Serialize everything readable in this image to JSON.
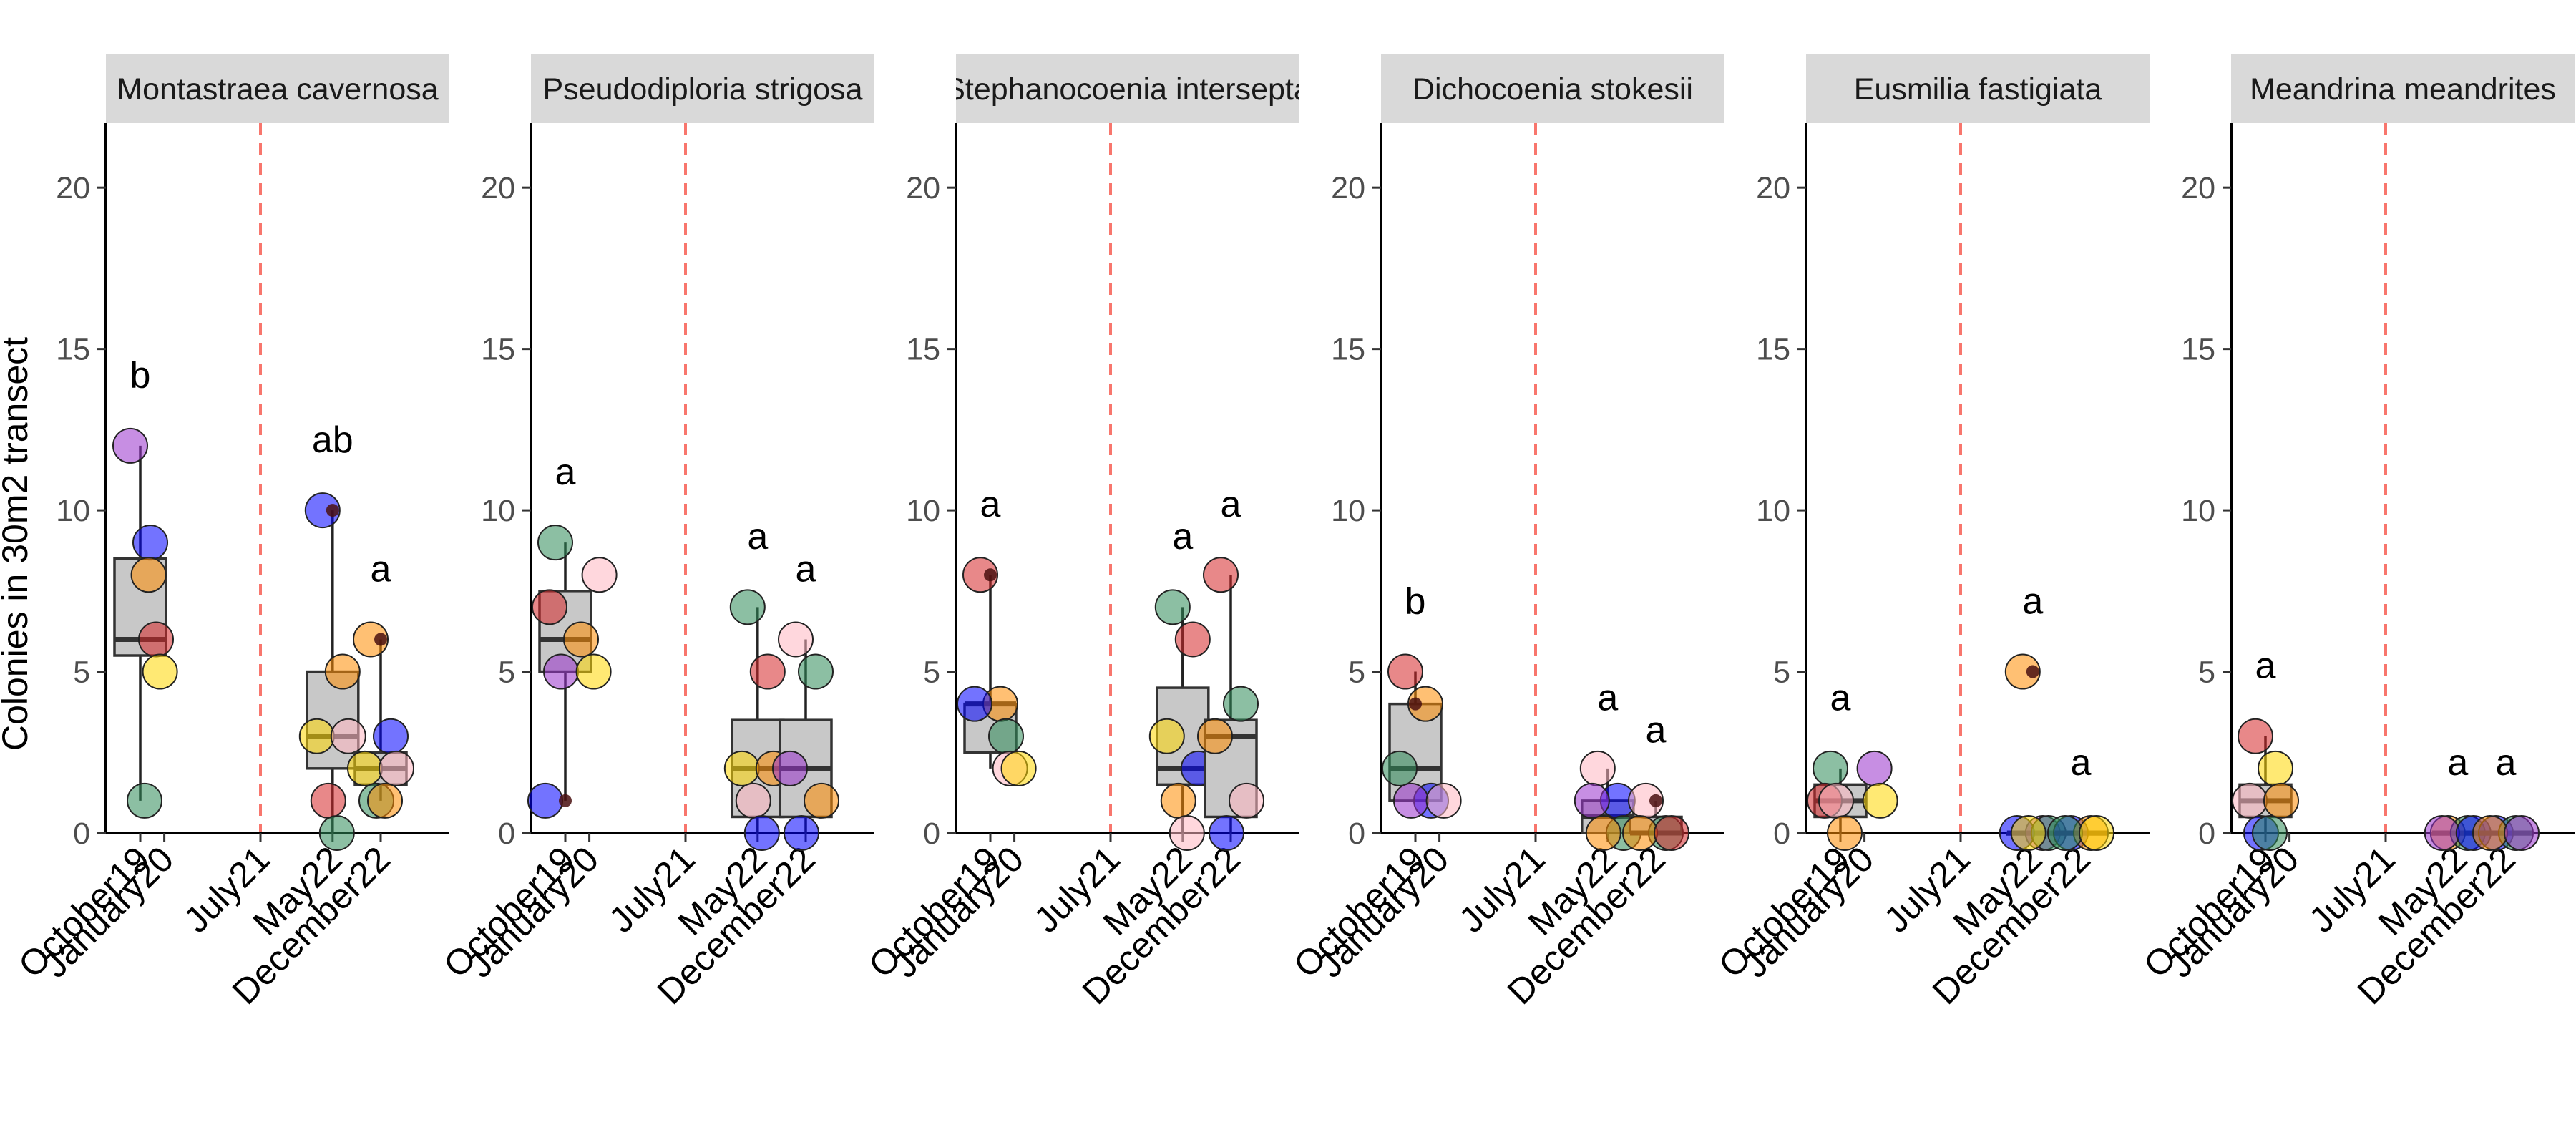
{
  "chart_data": {
    "type": "box",
    "ylabel": "Colonies in 30m2 transect",
    "ylim": [
      0,
      22
    ],
    "yticks": [
      0,
      5,
      10,
      15,
      20
    ],
    "x_categories": [
      "October19",
      "January20",
      "July21",
      "May22",
      "December22"
    ],
    "reference_line": {
      "at": "July21",
      "style": "dashed",
      "color": "#f8766d"
    },
    "point_colors": [
      "#2e8b57",
      "#0000ff",
      "#ffd700",
      "#ff8c00",
      "#9932cc",
      "#ffb6c1",
      "#d62728",
      "#c0c0c0"
    ],
    "box_fill": "#c8c8c8",
    "grid": false,
    "panels": [
      {
        "species": "Montastraea cavernosa",
        "groups": [
          {
            "time": "October19",
            "box": {
              "q1": 5.5,
              "median": 6,
              "q3": 8.5,
              "wlo": 1,
              "whi": 12
            },
            "letter": "b",
            "letter_y": 13.8,
            "points": [
              {
                "x": "October19",
                "y": 12,
                "c": 4
              },
              {
                "x": "October19",
                "y": 9,
                "c": 1
              },
              {
                "x": "January20",
                "y": 8,
                "c": 3
              },
              {
                "x": "October19",
                "y": 6,
                "c": 6
              },
              {
                "x": "January20",
                "y": 5,
                "c": 2
              },
              {
                "x": "October19",
                "y": 1,
                "c": 0
              }
            ],
            "mean": null
          },
          {
            "time": "May22",
            "box": {
              "q1": 2,
              "median": 3,
              "q3": 5,
              "wlo": 0,
              "whi": 10
            },
            "letter": "ab",
            "letter_y": 11.8,
            "points": [
              {
                "x": "May22",
                "y": 10,
                "c": 1
              },
              {
                "x": "May22",
                "y": 5,
                "c": 3
              },
              {
                "x": "May22",
                "y": 3,
                "c": 2
              },
              {
                "x": "May22",
                "y": 3,
                "c": 5
              },
              {
                "x": "May22",
                "y": 1,
                "c": 6
              },
              {
                "x": "May22",
                "y": 0,
                "c": 0
              }
            ],
            "mean": 10
          },
          {
            "time": "December22",
            "box": {
              "q1": 1.5,
              "median": 2,
              "q3": 2.5,
              "wlo": 1,
              "whi": 6
            },
            "letter": "a",
            "letter_y": 7.8,
            "points": [
              {
                "x": "December22",
                "y": 6,
                "c": 3
              },
              {
                "x": "December22",
                "y": 3,
                "c": 1
              },
              {
                "x": "December22",
                "y": 2,
                "c": 2
              },
              {
                "x": "December22",
                "y": 2,
                "c": 5
              },
              {
                "x": "December22",
                "y": 1,
                "c": 0
              },
              {
                "x": "December22",
                "y": 1,
                "c": 3
              }
            ],
            "mean": 6
          }
        ]
      },
      {
        "species": "Pseudodiploria strigosa",
        "groups": [
          {
            "time": "October19",
            "box": {
              "q1": 5,
              "median": 6,
              "q3": 7.5,
              "wlo": 1,
              "whi": 9
            },
            "letter": "a",
            "letter_y": 10.8,
            "points": [
              {
                "x": "October19",
                "y": 9,
                "c": 0
              },
              {
                "x": "January20",
                "y": 8,
                "c": 5
              },
              {
                "x": "October19",
                "y": 7,
                "c": 6
              },
              {
                "x": "October19",
                "y": 6,
                "c": 3
              },
              {
                "x": "October19",
                "y": 5,
                "c": 4
              },
              {
                "x": "January20",
                "y": 5,
                "c": 2
              },
              {
                "x": "October19",
                "y": 1,
                "c": 1
              }
            ],
            "mean": 1
          },
          {
            "time": "May22",
            "box": {
              "q1": 0.5,
              "median": 2,
              "q3": 3.5,
              "wlo": 0,
              "whi": 7
            },
            "letter": "a",
            "letter_y": 8.8,
            "points": [
              {
                "x": "May22",
                "y": 7,
                "c": 0
              },
              {
                "x": "May22",
                "y": 5,
                "c": 6
              },
              {
                "x": "May22",
                "y": 2,
                "c": 2
              },
              {
                "x": "May22",
                "y": 2,
                "c": 3
              },
              {
                "x": "May22",
                "y": 1,
                "c": 5
              },
              {
                "x": "May22",
                "y": 0,
                "c": 1
              }
            ],
            "mean": null
          },
          {
            "time": "December22",
            "box": {
              "q1": 0.5,
              "median": 2,
              "q3": 3.5,
              "wlo": 0,
              "whi": 6
            },
            "letter": "a",
            "letter_y": 7.8,
            "points": [
              {
                "x": "December22",
                "y": 6,
                "c": 5
              },
              {
                "x": "December22",
                "y": 5,
                "c": 0
              },
              {
                "x": "December22",
                "y": 2,
                "c": 4
              },
              {
                "x": "December22",
                "y": 1,
                "c": 3
              },
              {
                "x": "December22",
                "y": 0,
                "c": 1
              }
            ],
            "mean": null
          }
        ]
      },
      {
        "species": "Stephanocoenia intersepta",
        "groups": [
          {
            "time": "October19",
            "box": {
              "q1": 2.5,
              "median": 4,
              "q3": 4,
              "wlo": 2,
              "whi": 8
            },
            "letter": "a",
            "letter_y": 9.8,
            "points": [
              {
                "x": "October19",
                "y": 8,
                "c": 6
              },
              {
                "x": "October19",
                "y": 4,
                "c": 3
              },
              {
                "x": "October19",
                "y": 4,
                "c": 1
              },
              {
                "x": "October19",
                "y": 3,
                "c": 0
              },
              {
                "x": "January20",
                "y": 2,
                "c": 5
              },
              {
                "x": "January20",
                "y": 2,
                "c": 2
              }
            ],
            "mean": 8
          },
          {
            "time": "May22",
            "box": {
              "q1": 1.5,
              "median": 2,
              "q3": 4.5,
              "wlo": 0,
              "whi": 7
            },
            "letter": "a",
            "letter_y": 8.8,
            "points": [
              {
                "x": "May22",
                "y": 7,
                "c": 0
              },
              {
                "x": "May22",
                "y": 6,
                "c": 6
              },
              {
                "x": "May22",
                "y": 3,
                "c": 2
              },
              {
                "x": "May22",
                "y": 2,
                "c": 1
              },
              {
                "x": "May22",
                "y": 1,
                "c": 3
              },
              {
                "x": "May22",
                "y": 0,
                "c": 5
              }
            ],
            "mean": null
          },
          {
            "time": "December22",
            "box": {
              "q1": 0.5,
              "median": 3,
              "q3": 3.5,
              "wlo": 0,
              "whi": 8
            },
            "letter": "a",
            "letter_y": 9.8,
            "points": [
              {
                "x": "December22",
                "y": 8,
                "c": 6
              },
              {
                "x": "December22",
                "y": 4,
                "c": 0
              },
              {
                "x": "December22",
                "y": 3,
                "c": 3
              },
              {
                "x": "December22",
                "y": 1,
                "c": 5
              },
              {
                "x": "December22",
                "y": 0,
                "c": 1
              }
            ],
            "mean": null
          }
        ]
      },
      {
        "species": "Dichocoenia stokesii",
        "groups": [
          {
            "time": "October19",
            "box": {
              "q1": 1,
              "median": 2,
              "q3": 4,
              "wlo": 1,
              "whi": 5
            },
            "letter": "b",
            "letter_y": 6.8,
            "points": [
              {
                "x": "October19",
                "y": 5,
                "c": 6
              },
              {
                "x": "October19",
                "y": 4,
                "c": 3
              },
              {
                "x": "October19",
                "y": 2,
                "c": 0
              },
              {
                "x": "October19",
                "y": 1,
                "c": 1
              },
              {
                "x": "October19",
                "y": 1,
                "c": 4
              },
              {
                "x": "January20",
                "y": 1,
                "c": 5
              }
            ],
            "mean": 4
          },
          {
            "time": "May22",
            "box": {
              "q1": 0,
              "median": 0.5,
              "q3": 1,
              "wlo": 0,
              "whi": 2
            },
            "letter": "a",
            "letter_y": 3.8,
            "points": [
              {
                "x": "May22",
                "y": 2,
                "c": 5
              },
              {
                "x": "May22",
                "y": 1,
                "c": 1
              },
              {
                "x": "May22",
                "y": 1,
                "c": 4
              },
              {
                "x": "May22",
                "y": 0,
                "c": 0
              },
              {
                "x": "May22",
                "y": 0,
                "c": 3
              }
            ],
            "mean": null
          },
          {
            "time": "December22",
            "box": {
              "q1": 0,
              "median": 0,
              "q3": 0.5,
              "wlo": 0,
              "whi": 1
            },
            "letter": "a",
            "letter_y": 2.8,
            "points": [
              {
                "x": "December22",
                "y": 1,
                "c": 5
              },
              {
                "x": "December22",
                "y": 0,
                "c": 0
              },
              {
                "x": "December22",
                "y": 0,
                "c": 3
              },
              {
                "x": "December22",
                "y": 0,
                "c": 6
              }
            ],
            "mean": 1
          }
        ]
      },
      {
        "species": "Eusmilia fastigiata",
        "groups": [
          {
            "time": "October19",
            "box": {
              "q1": 0.5,
              "median": 1,
              "q3": 1.5,
              "wlo": 0,
              "whi": 2
            },
            "letter": "a",
            "letter_y": 3.8,
            "points": [
              {
                "x": "October19",
                "y": 2,
                "c": 0
              },
              {
                "x": "January20",
                "y": 2,
                "c": 4
              },
              {
                "x": "October19",
                "y": 1,
                "c": 6
              },
              {
                "x": "January20",
                "y": 1,
                "c": 2
              },
              {
                "x": "October19",
                "y": 1,
                "c": 5
              },
              {
                "x": "October19",
                "y": 0,
                "c": 3
              }
            ],
            "mean": null
          },
          {
            "time": "May22",
            "box": {
              "q1": 0,
              "median": 0,
              "q3": 0,
              "wlo": 0,
              "whi": 0
            },
            "letter": "a",
            "letter_y": 6.8,
            "points": [
              {
                "x": "May22",
                "y": 5,
                "c": 3
              },
              {
                "x": "May22",
                "y": 0,
                "c": 4
              },
              {
                "x": "May22",
                "y": 0,
                "c": 1
              },
              {
                "x": "May22",
                "y": 0,
                "c": 0
              },
              {
                "x": "May22",
                "y": 0,
                "c": 2
              }
            ],
            "mean": 5
          },
          {
            "time": "December22",
            "box": {
              "q1": 0,
              "median": 0,
              "q3": 0,
              "wlo": 0,
              "whi": 0
            },
            "letter": "a",
            "letter_y": 1.8,
            "points": [
              {
                "x": "December22",
                "y": 0,
                "c": 1
              },
              {
                "x": "December22",
                "y": 0,
                "c": 3
              },
              {
                "x": "December22",
                "y": 0,
                "c": 0
              },
              {
                "x": "December22",
                "y": 0,
                "c": 2
              }
            ],
            "mean": null
          }
        ]
      },
      {
        "species": "Meandrina meandrites",
        "groups": [
          {
            "time": "October19",
            "box": {
              "q1": 0.5,
              "median": 1,
              "q3": 1.5,
              "wlo": 0,
              "whi": 3
            },
            "letter": "a",
            "letter_y": 4.8,
            "points": [
              {
                "x": "October19",
                "y": 3,
                "c": 6
              },
              {
                "x": "October19",
                "y": 2,
                "c": 2
              },
              {
                "x": "October19",
                "y": 1,
                "c": 5
              },
              {
                "x": "October19",
                "y": 1,
                "c": 3
              },
              {
                "x": "October19",
                "y": 0,
                "c": 1
              },
              {
                "x": "October19",
                "y": 0,
                "c": 0
              }
            ],
            "mean": null
          },
          {
            "time": "May22",
            "box": {
              "q1": 0,
              "median": 0,
              "q3": 0,
              "wlo": 0,
              "whi": 0
            },
            "letter": "a",
            "letter_y": 1.8,
            "points": [
              {
                "x": "May22",
                "y": 0,
                "c": 3
              },
              {
                "x": "May22",
                "y": 0,
                "c": 0
              },
              {
                "x": "May22",
                "y": 0,
                "c": 4
              },
              {
                "x": "May22",
                "y": 0,
                "c": 1
              }
            ],
            "mean": null
          },
          {
            "time": "December22",
            "box": {
              "q1": 0,
              "median": 0,
              "q3": 0,
              "wlo": 0,
              "whi": 0
            },
            "letter": "a",
            "letter_y": 1.8,
            "points": [
              {
                "x": "December22",
                "y": 0,
                "c": 1
              },
              {
                "x": "December22",
                "y": 0,
                "c": 0
              },
              {
                "x": "December22",
                "y": 0,
                "c": 3
              },
              {
                "x": "December22",
                "y": 0,
                "c": 4
              }
            ],
            "mean": null
          }
        ]
      }
    ]
  }
}
